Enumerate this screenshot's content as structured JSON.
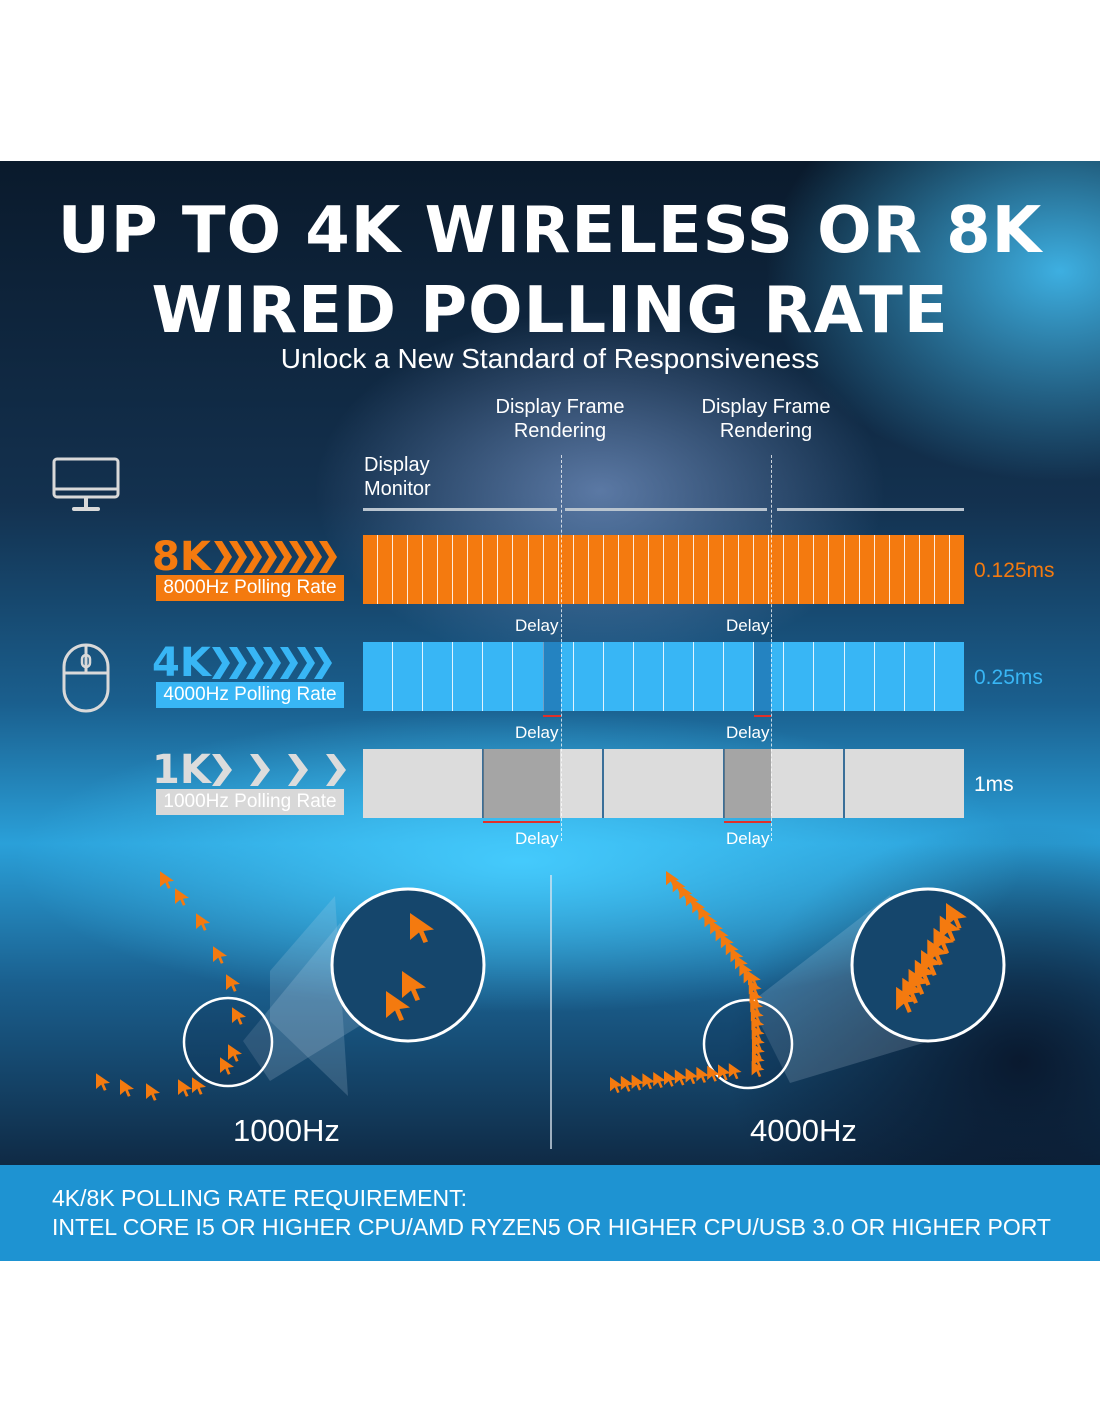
{
  "headline": {
    "line1": "UP TO 4K WIRELESS OR 8K",
    "line2": "WIRED POLLING RATE",
    "subtitle": "Unlock a New Standard of Responsiveness"
  },
  "columns": {
    "frame_1": "Display Frame Rendering",
    "frame_2": "Display Frame Rendering",
    "monitor": "Display Monitor"
  },
  "rates": [
    {
      "badge": "8K",
      "label": "8000Hz Polling Rate",
      "value": "0.125ms",
      "color": "#f47a0f",
      "segments": 40
    },
    {
      "badge": "4K",
      "label": "4000Hz Polling Rate",
      "value": "0.25ms",
      "color": "#38b6f5",
      "segments": 20
    },
    {
      "badge": "1K",
      "label": "1000Hz Polling Rate",
      "value": "1ms",
      "color": "#dcdcdc",
      "segments": 5
    }
  ],
  "delays": [
    "Delay",
    "Delay",
    "Delay",
    "Delay",
    "Delay",
    "Delay"
  ],
  "compare": {
    "left": "1000Hz",
    "right": "4000Hz"
  },
  "requirement": {
    "title": "4K/8K POLLING RATE REQUIREMENT:",
    "text": "INTEL CORE I5 OR HIGHER CPU/AMD RYZEN5 OR HIGHER CPU/USB 3.0 OR HIGHER PORT"
  }
}
